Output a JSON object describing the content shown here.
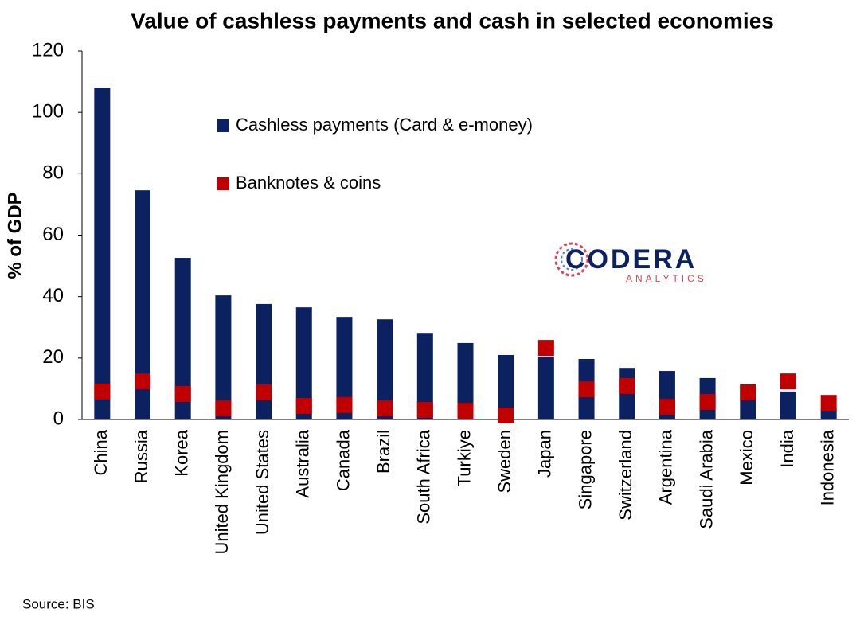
{
  "chart_data": {
    "type": "bar",
    "title": "Value of cashless payments and cash in selected economies",
    "y_label": "% of GDP",
    "categories": [
      "China",
      "Russia",
      "Korea",
      "United Kingdom",
      "United States",
      "Australia",
      "Canada",
      "Brazil",
      "South Africa",
      "Turkiye",
      "Sweden",
      "Japan",
      "Singapore",
      "Switzerland",
      "Argentina",
      "Saudi Arabia",
      "Mexico",
      "India",
      "Indonesia"
    ],
    "series": [
      {
        "name": "Cashless payments (Card & e-money)",
        "color": "#0c2260",
        "mark": "bar",
        "values": [
          108,
          74.6,
          52.6,
          40.4,
          37.6,
          36.5,
          33.4,
          32.6,
          28.2,
          24.9,
          21,
          20.5,
          19.7,
          16.8,
          15.8,
          13.5,
          11.4,
          9.1,
          3.5
        ]
      },
      {
        "name": "Banknotes & coins",
        "color": "#c00000",
        "mark": "square",
        "values": [
          9.1,
          12.4,
          8.3,
          3.6,
          8.8,
          4.4,
          4.7,
          3.6,
          3.1,
          2.8,
          1.3,
          23.3,
          9.8,
          10.9,
          4.1,
          5.7,
          8.8,
          12.4,
          5.4
        ]
      }
    ],
    "ylim": [
      0,
      120
    ],
    "yticks": [
      0,
      20,
      40,
      60,
      80,
      100,
      120
    ],
    "grid": false
  },
  "logo": {
    "name": "CODERA",
    "tagline": "ANALYTICS"
  },
  "source": "Source: BIS"
}
